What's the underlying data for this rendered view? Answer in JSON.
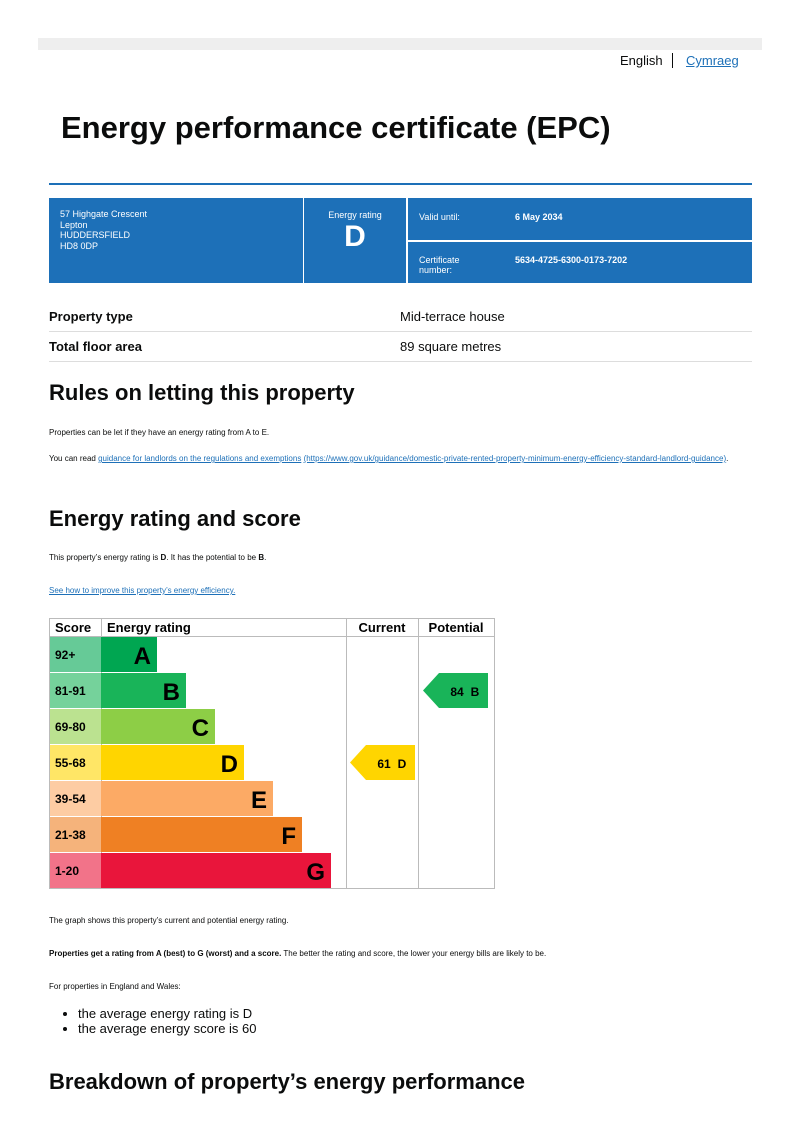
{
  "language": {
    "english": "English",
    "welsh": "Cymraeg"
  },
  "title": "Energy performance certificate (EPC)",
  "summary": {
    "address": [
      "57 Highgate Crescent",
      "Lepton",
      "HUDDERSFIELD",
      "HD8 0DP"
    ],
    "energy_rating_label": "Energy rating",
    "energy_rating": "D",
    "valid_until_label": "Valid until:",
    "valid_until": "6 May 2034",
    "certificate_label": "Certificate number:",
    "certificate_number": "5634-4725-6300-0173-7202"
  },
  "property": {
    "rows": [
      [
        "Property type",
        "Mid-terrace house"
      ],
      [
        "Total floor area",
        "89 square metres"
      ]
    ]
  },
  "rules": {
    "heading": "Rules on letting this property",
    "text": "Properties can be let if they have an energy rating from A to E.",
    "read_prefix": "You can read ",
    "read_link": "guidance for landlords on the regulations and exemptions",
    "read_url": "(https://www.gov.uk/guidance/domestic-private-rented-property-minimum-energy-efficiency-standard-landlord-guidance)",
    "read_suffix": "."
  },
  "energy": {
    "heading": "Energy rating and score",
    "text_parts": [
      "This property’s energy rating is ",
      "D",
      ". It has the potential to be ",
      "B",
      "."
    ],
    "link": "See how to improve this property’s energy efficiency."
  },
  "epc_chart": {
    "headers": [
      "Score",
      "Energy rating",
      "Current",
      "Potential"
    ],
    "bands": [
      {
        "score": "92+",
        "letter": "A",
        "color": "#00a651"
      },
      {
        "score": "81-91",
        "letter": "B",
        "color": "#19b459"
      },
      {
        "score": "69-80",
        "letter": "C",
        "color": "#8dce46"
      },
      {
        "score": "55-68",
        "letter": "D",
        "color": "#ffd500"
      },
      {
        "score": "39-54",
        "letter": "E",
        "color": "#fcaa65"
      },
      {
        "score": "21-38",
        "letter": "F",
        "color": "#ef8023"
      },
      {
        "score": "1-20",
        "letter": "G",
        "color": "#e9153b"
      }
    ],
    "current": {
      "score": 61,
      "letter": "D"
    },
    "potential": {
      "score": 84,
      "letter": "B"
    }
  },
  "after": {
    "graph_note": "The graph shows this property’s current and potential energy rating.",
    "rating_bold": "Properties get a rating from A (best) to G (worst) and a score.",
    "rating_rest": " The better the rating and score, the lower your energy bills are likely to be.",
    "england_wales": "For properties in England and Wales:",
    "list": [
      "the average energy rating is D",
      "the average energy score is 60"
    ]
  },
  "breakdown": {
    "heading": "Breakdown of property’s energy performance"
  }
}
